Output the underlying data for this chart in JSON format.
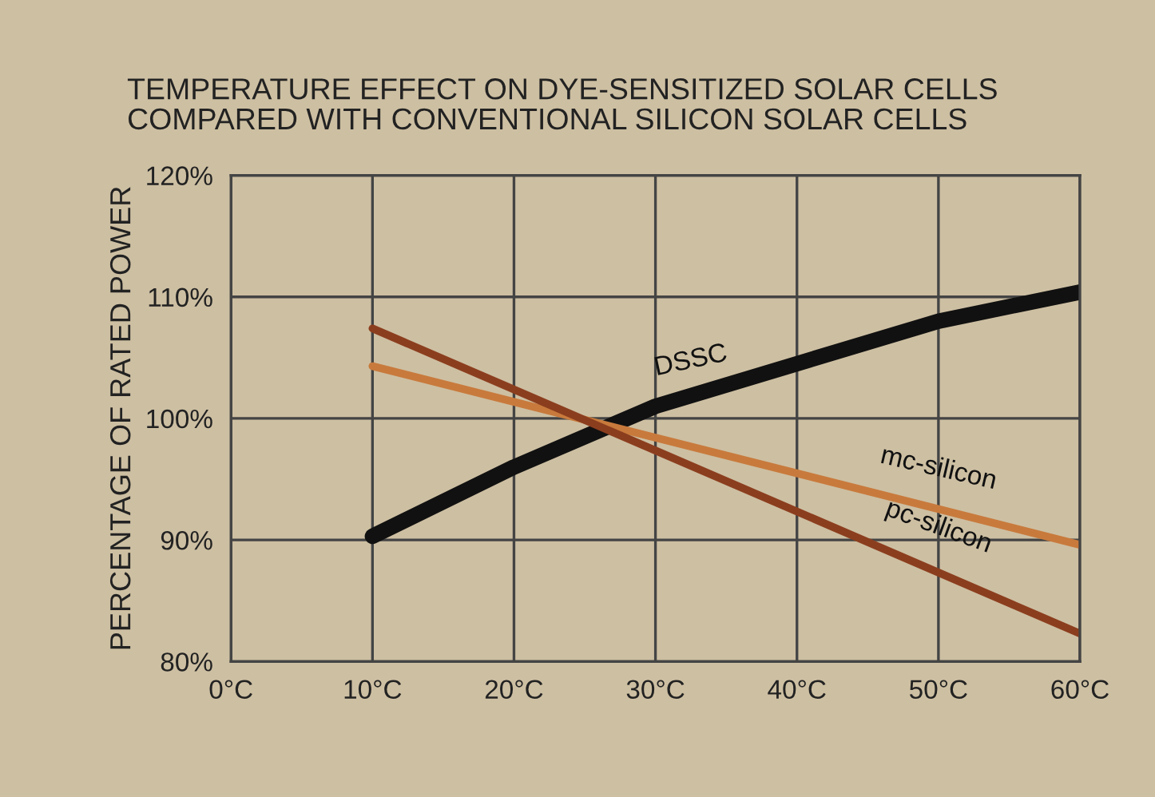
{
  "chart_data": {
    "type": "line",
    "title": "TEMPERATURE EFFECT ON DYE-SENSITIZED SOLAR CELLS\nCOMPARED WITH CONVENTIONAL SILICON SOLAR CELLS",
    "ylabel": "PERCENTAGE OF RATED POWER",
    "series": [
      {
        "name": "DSSC",
        "color": "#111111",
        "x": [
          10,
          20,
          30,
          40,
          50,
          60
        ],
        "values": [
          90.3,
          96,
          101,
          104.5,
          108,
          110.4
        ]
      },
      {
        "name": "mc-silicon",
        "color": "#c87a3c",
        "x": [
          10,
          60
        ],
        "values": [
          104.3,
          89.6
        ]
      },
      {
        "name": "pc-silicon",
        "color": "#8b3e1e",
        "x": [
          10,
          60
        ],
        "values": [
          107.4,
          82.3
        ]
      }
    ],
    "xlim": [
      0,
      60
    ],
    "ylim": [
      80,
      120
    ],
    "xticks": [
      {
        "value": 0,
        "label": "0°C"
      },
      {
        "value": 10,
        "label": "10°C"
      },
      {
        "value": 20,
        "label": "20°C"
      },
      {
        "value": 30,
        "label": "30°C"
      },
      {
        "value": 40,
        "label": "40°C"
      },
      {
        "value": 50,
        "label": "50°C"
      },
      {
        "value": 60,
        "label": "60°C"
      }
    ],
    "yticks": [
      {
        "value": 80,
        "label": "80%"
      },
      {
        "value": 90,
        "label": "90%"
      },
      {
        "value": 100,
        "label": "100%"
      },
      {
        "value": 110,
        "label": "110%"
      },
      {
        "value": 120,
        "label": "120%"
      }
    ],
    "grid": true,
    "legend": false,
    "marker": "none",
    "line_style": "solid"
  }
}
